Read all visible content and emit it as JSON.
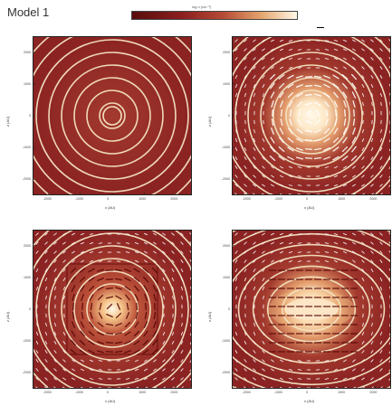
{
  "figure": {
    "title": "Model 1",
    "colorbar_label": "log n (cm⁻³)",
    "scale_label": ""
  },
  "colors": {
    "background_dark": "#8b2323",
    "background_mid": "#a33a2e",
    "contour": "#f3e3c0",
    "core_bright": "#fff8e8",
    "core_warm": "#f5c58a",
    "vector": "#ffffff",
    "vector_dark": "#5a0808"
  },
  "panels": [
    {
      "id": "top-left",
      "title": "",
      "xlabel": "x (AU)",
      "ylabel": "z (AU)",
      "xticks": [
        "-2000",
        "-1000",
        "0",
        "1000",
        "2000"
      ],
      "yticks": [
        "2000",
        "1000",
        "0",
        "-1000",
        "-2000"
      ],
      "core": "none",
      "vectors": false
    },
    {
      "id": "top-right",
      "title": "",
      "xlabel": "x (AU)",
      "ylabel": "z (AU)",
      "xticks": [
        "-2000",
        "-1000",
        "0",
        "1000",
        "2000"
      ],
      "yticks": [
        "2000",
        "1000",
        "0",
        "-1000",
        "-2000"
      ],
      "core": "bright-round",
      "vectors": true
    },
    {
      "id": "bottom-left",
      "title": "",
      "xlabel": "x (AU)",
      "ylabel": "z (AU)",
      "xticks": [
        "-2000",
        "-1000",
        "0",
        "1000",
        "2000"
      ],
      "yticks": [
        "2000",
        "1000",
        "0",
        "-1000",
        "-2000"
      ],
      "core": "warm-square",
      "vectors": true
    },
    {
      "id": "bottom-right",
      "title": "",
      "xlabel": "x (AU)",
      "ylabel": "z (AU)",
      "xticks": [
        "-2000",
        "-1000",
        "0",
        "1000",
        "2000"
      ],
      "yticks": [
        "2000",
        "1000",
        "0",
        "-1000",
        "-2000"
      ],
      "core": "bright-flat",
      "vectors": true
    }
  ]
}
